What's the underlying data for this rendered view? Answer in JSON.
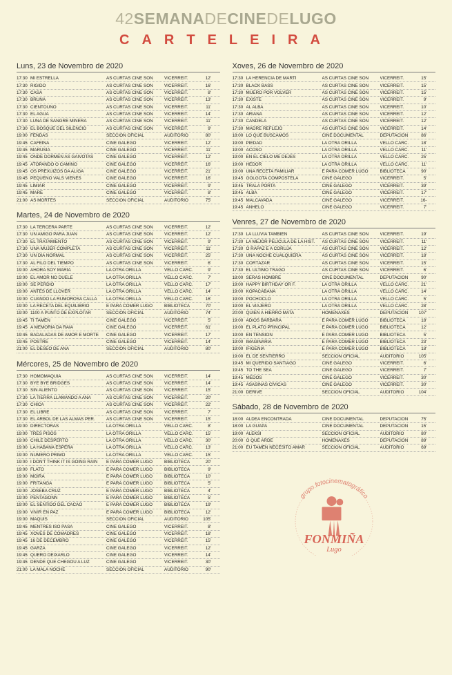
{
  "header": {
    "prefix_num": "42",
    "word_bold1": "SEMANA",
    "word_thin1": "DE",
    "word_bold2": "CINE",
    "word_thin2": "DE",
    "word_bold3": "LUGO",
    "subtitle": "CARTELEIRA"
  },
  "colors": {
    "bg": "#f8f4dc",
    "accent_red": "#d24b3f",
    "title_gray": "#a9a890"
  },
  "days": [
    {
      "label": "Luns, 23 de Novembro de 2020",
      "col": 0,
      "rows": [
        [
          "17:30",
          "MI ESTRELLA",
          "AS CURTAS CINE SON",
          "VICERREIT.",
          "12'"
        ],
        [
          "17:30",
          "RIGIDO",
          "AS CURTAS CINE SON",
          "VICERREIT.",
          "16'"
        ],
        [
          "17:30",
          "CASA",
          "AS CURTAS CINE SON",
          "VICERREIT.",
          "8'"
        ],
        [
          "17:30",
          "BRUNA",
          "AS CURTAS CINE SON",
          "VICERREIT.",
          "13'"
        ],
        [
          "17:30",
          "CIENTOUNO",
          "AS CURTAS CINE SON",
          "VICERREIT.",
          "11'"
        ],
        [
          "17:30",
          "EL AGUA",
          "AS CURTAS CINE SON",
          "VICERREIT.",
          "14'"
        ],
        [
          "17:30",
          "LUNA DE SANGRE MINERA",
          "AS CURTAS CINE SON",
          "VICERREIT.",
          "11'"
        ],
        [
          "17:30",
          "EL BOSQUE DEL SILENCIO",
          "AS CURTAS CINE SON",
          "VICERREIT.",
          "9'"
        ],
        [
          "19:00",
          "FENDAS",
          "SECCIÓN OFICIAL",
          "AUDITORIO",
          "80'"
        ],
        [
          "19:45",
          "CAFEÍNA",
          "CINE GALEGO",
          "VICERREIT.",
          "12'"
        ],
        [
          "19:45",
          "MARUSÍA",
          "CINE GALEGO",
          "VICERREIT.",
          "11'"
        ],
        [
          "19:45",
          "ONDE DORMEN AS GAIVOTAS",
          "CINE GALEGO",
          "VICERREIT.",
          "12'"
        ],
        [
          "19:45",
          "ATOPANDO O CAMIÑO",
          "CINE GALEGO",
          "VICERREIT.",
          "16'"
        ],
        [
          "19:45",
          "OS PREXUIZOS DA ALIGA",
          "CINE GALEGO",
          "VICERREIT.",
          "21'"
        ],
        [
          "19:45",
          "PEQUENO VALS VIENÉS",
          "CINE GALEGO",
          "VICERREIT.",
          "16'"
        ],
        [
          "19:45",
          "LIMIAR",
          "CINE GALEGO",
          "VICERREIT.",
          "9'"
        ],
        [
          "19:45",
          "MARE",
          "CINE GALEGO",
          "VICERREIT.",
          "8'"
        ],
        [
          "21:00",
          "AS MORTES",
          "SECCIÓN OFICIAL",
          "AUDITORIO",
          "75'"
        ]
      ]
    },
    {
      "label": "Martes, 24 de Novembro de 2020",
      "col": 0,
      "rows": [
        [
          "17:30",
          "LA TERCERA PARTE",
          "AS CURTAS CINE SON",
          "VICERREIT.",
          "12'"
        ],
        [
          "17:30",
          "UN AMIGO PARA JUAN",
          "AS CURTAS CINE SON",
          "VICERREIT.",
          "12'"
        ],
        [
          "17:30",
          "EL TRATAMIENTO",
          "AS CURTAS CINE SON",
          "VICERREIT.",
          "9'"
        ],
        [
          "17:30",
          "UNA MUJER COMPLETA",
          "AS CURTAS CINE SON",
          "VICERREIT.",
          "11'"
        ],
        [
          "17:30",
          "UN DÍA NORMAL",
          "AS CURTAS CINE SON",
          "VICERREIT.",
          "25'"
        ],
        [
          "17:30",
          "AL FILO DEL TIEMPO",
          "AS CURTAS CINE SON",
          "VICERREIT.",
          "6'"
        ],
        [
          "19:00",
          "AHORA SOY MARÍA",
          "LA OTRA ORILLA",
          "VELLO CÁRC.",
          "9'"
        ],
        [
          "19:00",
          "EL AMOR NO DUELE",
          "LA OTRA ORILLA",
          "VELLO CÁRC.",
          "7'"
        ],
        [
          "19:00",
          "SE PERDIÓ",
          "LA OTRA ORILLA",
          "VELLO CÁRC.",
          "17'"
        ],
        [
          "19:00",
          "ANTES DE LLOVER",
          "LA OTRA ORILLA",
          "VELLO CÁRC.",
          "14'"
        ],
        [
          "19:00",
          "CUANDO LA RUMOROSA CALLA",
          "LA OTRA ORILLA",
          "VELLO CÁRC.",
          "16'"
        ],
        [
          "19:00",
          "LA RECETA DEL EQUILIBRIO",
          "E PARA COMER LUGO",
          "BIBLIOTECA",
          "70'"
        ],
        [
          "19:00",
          "1100 A PUNTO DE EXPLOTAR",
          "SECCIÓN OFICIAL",
          "AUDITORIO",
          "74'"
        ],
        [
          "19:45",
          "TI TAMÉN",
          "CINE GALEGO",
          "VICERREIT.",
          "5'"
        ],
        [
          "19:45",
          "A MEMORIA DA RAIA",
          "CINE GALEGO",
          "VICERREIT.",
          "61'"
        ],
        [
          "19:45",
          "BADALADAS DE AMOR E MORTE",
          "CINE GALEGO",
          "VICERREIT.",
          "17'"
        ],
        [
          "19:45",
          "POSTRE",
          "CINE GALEGO",
          "VICERREIT.",
          "14'"
        ],
        [
          "21:00",
          "EL DESEO DE ANA",
          "SECCIÓN OFICIAL",
          "AUDITORIO",
          "80'"
        ]
      ]
    },
    {
      "label": "Mércores, 25  de Novembro de 2020",
      "col": 0,
      "rows": [
        [
          "17:30",
          "HOMOMAQUIA",
          "AS CURTAS CINE SON",
          "VICERREIT.",
          "14'"
        ],
        [
          "17:30",
          "BYE BYE BRIDGES",
          "AS CURTAS CINE SON",
          "VICERREIT.",
          "14'"
        ],
        [
          "17:30",
          "SIN ALIENTO",
          "AS CURTAS CINE SON",
          "VICERREIT.",
          "15'"
        ],
        [
          "17:30",
          "LA TIERRA LLAMANDO A ANA",
          "AS CURTAS CINE SON",
          "VICERREIT.",
          "20'"
        ],
        [
          "17:30",
          "CHICA",
          "AS CURTAS CINE SON",
          "VICERREIT.",
          "22'"
        ],
        [
          "17:30",
          "EL LIBRE",
          "AS CURTAS CINE SON",
          "VICERREIT.",
          "7'"
        ],
        [
          "17:30",
          "EL ÁRBOL DE LAS ALMAS PER.",
          "AS CURTAS CINE SON",
          "VICERREIT.",
          "15'"
        ],
        [
          "19:00",
          "DIRECTORAS",
          "LA OTRA ORILLA",
          "VELLO CÁRC.",
          "8'"
        ],
        [
          "19:00",
          "TRES PISOS",
          "LA OTRA ORILLA",
          "VELLO CÁRC.",
          "15'"
        ],
        [
          "19:00",
          "CHILE DESPERTÓ",
          "LA OTRA ORILLA",
          "VELLO CÁRC.",
          "30'"
        ],
        [
          "19:00",
          "LA HABANA ESPERA",
          "LA OTRA ORILLA",
          "VELLO CÁRC.",
          "13'"
        ],
        [
          "19:00",
          "NÚMERO PRIMO",
          "LA OTRA ORILLA",
          "VELLO CÁRC.",
          "15'"
        ],
        [
          "19:00",
          "I DON'T THINK IT IS GOING RAIN",
          "E PARA COMER LUGO",
          "BIBLIOTECA",
          "20'"
        ],
        [
          "19:00",
          "FLATÓ",
          "E PARA COMER LUGO",
          "BIBLIOTECA",
          "9'"
        ],
        [
          "19:00",
          "MOIRA",
          "E PARA COMER LUGO",
          "BIBLIOTECA",
          "10'"
        ],
        [
          "19:00",
          "FRITANGA",
          "E PARA COMER LUGO",
          "BIBLIOTECA",
          "5'"
        ],
        [
          "19:00",
          "JOSEBA CRUZ",
          "E PARA COMER LUGO",
          "BIBLIOTECA",
          "4'"
        ],
        [
          "19:00",
          "PENTAGONN",
          "E PARA COMER LUGO",
          "BIBLIOTECA",
          "5'"
        ],
        [
          "19:00",
          "EL SENTIDO DEL CACAO",
          "E PARA COMER LUGO",
          "BIBLIOTECA",
          "19'"
        ],
        [
          "19:00",
          "VIVIR EN PAZ",
          "E PARA COMER LUGO",
          "BIBLIOTECA",
          "12'"
        ],
        [
          "19:00",
          "MAQUIS",
          "SECCIÓN OFICIAL",
          "AUDITORIO",
          "105'"
        ],
        [
          "19:45",
          "MENTRES ISO PASA",
          "CINE GALEGO",
          "VICERREIT.",
          "8'"
        ],
        [
          "19:45",
          "XOVES DE COMADRES",
          "CINE GALEGO",
          "VICERREIT.",
          "18'"
        ],
        [
          "19:45",
          "16 DE DECEMBRO",
          "CINE GALEGO",
          "VICERREIT.",
          "15'"
        ],
        [
          "19:45",
          "GARZA",
          "CINE GALEGO",
          "VICERREIT.",
          "12'"
        ],
        [
          "19:45",
          "QUERO DEIXARLO",
          "CINE GALEGO",
          "VICERREIT.",
          "14'"
        ],
        [
          "19:45",
          "DENDE QUE CHEGOU A LUZ",
          "CINE GALEGO",
          "VICERREIT.",
          "30'"
        ],
        [
          "21:00",
          "LA MALA NOCHE",
          "SECCIÓN OFICIAL",
          "AUDITORIO",
          "90'"
        ]
      ]
    },
    {
      "label": "Xoves, 26  de Novembro de 2020",
      "col": 1,
      "rows": [
        [
          "17:30",
          "LA HERENCIA DE MARTÍ",
          "AS CURTAS CINE SON",
          "VICERREIT.",
          "15'"
        ],
        [
          "17:30",
          "BLACK BASS",
          "AS CURTAS CINE SON",
          "VICERREIT.",
          "15'"
        ],
        [
          "17:30",
          "MUERO POR VOLVER",
          "AS CURTAS CINE SON",
          "VICERREIT.",
          "15'"
        ],
        [
          "17:30",
          "EXISTE",
          "AS CURTAS CINE SON",
          "VICERREIT.",
          "9'"
        ],
        [
          "17:30",
          "AL ALBA",
          "AS CURTAS CINE SON",
          "VICERREIT.",
          "10'"
        ],
        [
          "17:30",
          "ARIANA",
          "AS CURTAS CINE SON",
          "VICERREIT.",
          "12'"
        ],
        [
          "17:30",
          "CANDELA",
          "AS CURTAS CINE SON",
          "VICERREIT.",
          "12'"
        ],
        [
          "17:30",
          "MADRE REFLEJO",
          "AS CURTAS CINE SON",
          "VICERREIT.",
          "14'"
        ],
        [
          "18:00",
          "LO QUE BUSCAMOS",
          "CINE DOCUMENTAL",
          "DEPUTACIÓN",
          "86'"
        ],
        [
          "19:00",
          "PIEDAD",
          "LA OTRA ORILLA",
          "VELLO CÁRC.",
          "18'"
        ],
        [
          "19:00",
          "ACOSO",
          "LA OTRA ORILLA",
          "VELLO CÁRC.",
          "11'"
        ],
        [
          "19:00",
          "EN EL CIELO ME DEJES",
          "LA OTRA ORILLA",
          "VELLO CÁRC.",
          "25'"
        ],
        [
          "19:00",
          "HEDOR",
          "LA OTRA ORILLA",
          "VELLO CÁRC.",
          "11'"
        ],
        [
          "19:00",
          "UNA RECETA FAMILIAR",
          "E PARA COMER LUGO",
          "BIBLIOTECA",
          "90'"
        ],
        [
          "19:45",
          "GOLGOTA COMPOSTELA",
          "CINE GALEGO",
          "VICERREIT.",
          "5'"
        ],
        [
          "19:45",
          "TRALA PORTA",
          "CINE GALEGO",
          "VICERREIT.",
          "39'"
        ],
        [
          "19:45",
          "ALBA",
          "CINE GALEGO",
          "VICERREIT.",
          "17'"
        ],
        [
          "19:45",
          "MALCAVADA",
          "CINE GALEGO",
          "VICERREIT.",
          "16-"
        ],
        [
          "19:45",
          "ANHELO",
          "CINE GALEGO",
          "VICERREIT.",
          "7'"
        ]
      ]
    },
    {
      "label": "Venres, 27  de Novembro de 2020",
      "col": 1,
      "rows": [
        [
          "17:30",
          "LA LLUVIA TAMBIÉN",
          "AS CURTAS CINE SON",
          "VICERREIT.",
          "19'"
        ],
        [
          "17:30",
          "LA MEJOR PELÍCULA DE LA HIST.",
          "AS CURTAS CINE SON",
          "VICERREIT.",
          "11'"
        ],
        [
          "17:30",
          "O RAPAZ E A CORUJA",
          "AS CURTAS CINE SON",
          "VICERREIT.",
          "12'"
        ],
        [
          "17:30",
          "UNA NOCHE CUALQUIERA",
          "AS CURTAS CINE SON",
          "VICERREIT.",
          "18'"
        ],
        [
          "17:30",
          "CORTÁZAR",
          "AS CURTAS CINE SON",
          "VICERREIT.",
          "15'"
        ],
        [
          "17:30",
          "EL ÚLTIMO TRAGO",
          "AS CURTAS CINE SON",
          "VICERREIT.",
          "6'"
        ],
        [
          "18:00",
          "SERÁS HOMBRE",
          "CINE DOCUMENTAL",
          "DEPUTACIÓN",
          "90'"
        ],
        [
          "19:00",
          "HAPPY BIRTHDAY OR F.",
          "LA OTRA ORILLA",
          "VELLO CÁRC.",
          "21'"
        ],
        [
          "19:00",
          "KOPACABANA",
          "LA OTRA ORILLA",
          "VELLO CÁRC.",
          "14'"
        ],
        [
          "19:00",
          "POCHOCLO",
          "LA OTRA ORILLA",
          "VELLO CÁRC.",
          "5'"
        ],
        [
          "19:00",
          "EL VIAJERO",
          "LA OTRA ORILLA",
          "VELLO CÁRC.",
          "28'"
        ],
        [
          "20:00",
          "QUIEN A HIERRO MATA",
          "HOMENAXES",
          "DEPUTACIÓN",
          "107'"
        ],
        [
          "19:00",
          "ADIÓS BÁRBARA",
          "E PARA COMER LUGO",
          "BIBLIOTECA",
          "18'"
        ],
        [
          "19:00",
          "EL PLATO PRINCIPAL",
          "E PARA COMER LUGO",
          "BIBLIOTECA",
          "12'"
        ],
        [
          "19:00",
          "EN TENSIÓN",
          "E PARA COMER LUGO",
          "BIBLIOTECA",
          "5'"
        ],
        [
          "19:00",
          "IMAGINARIA",
          "E PARA COMER LUGO",
          "BIBLIOTECA",
          "23'"
        ],
        [
          "19:00",
          "IFIGENIA",
          "E PARA COMER LUGO",
          "BIBLIOTECA",
          "18'"
        ],
        [
          "19:00",
          "EL DE SENTIERRO",
          "SECCIÓN OFICIAL",
          "AUDITORIO",
          "105'"
        ],
        [
          "19:45",
          "MI QUERIDO SANTIAGO",
          "CINE GALEGO",
          "VICERREIT.",
          "6'"
        ],
        [
          "19:45",
          "TO THE SEA",
          "CINE GALEGO",
          "VICERREIT.",
          "7'"
        ],
        [
          "19:45",
          "MEDOS",
          "CINE GALEGO",
          "VICERREIT.",
          "30'"
        ],
        [
          "19:45",
          "ASASINAS CÍVICAS",
          "CINE GALEGO",
          "VICERREIT.",
          "30'"
        ],
        [
          "21:00",
          "DERIVÉ",
          "SECCIÓN OFICIAL",
          "AUDITORIO",
          "104'"
        ]
      ]
    },
    {
      "label": "Sábado, 28 de Novembro de 2020",
      "col": 1,
      "rows": [
        [
          "18:00",
          "ALDEA ENCONTRADA",
          "CINE DOCUMENTAL",
          "DEPUTACIÓN",
          "75'"
        ],
        [
          "18:00",
          "LA GUAPA",
          "CINE DOCUMENTAL",
          "DEPUTACIÓN",
          "15'"
        ],
        [
          "19:00",
          "ALEKSI",
          "SECCIÓN OFICIAL",
          "AUDITORIO",
          "80'"
        ],
        [
          "20:00",
          "O QUE ARDE",
          "HOMENAXES",
          "DEPUTACIÓN",
          "89'"
        ],
        [
          "21:00",
          "EU TAMÉN NECESITO AMAR",
          "SECCIÓN OFICIAL",
          "AUDITORIO",
          "69'"
        ]
      ]
    }
  ],
  "logo": {
    "line1": "grupo fotocinematográfico",
    "line2": "FONMIÑA",
    "line3": "Lugo",
    "color": "#d24b3f"
  }
}
